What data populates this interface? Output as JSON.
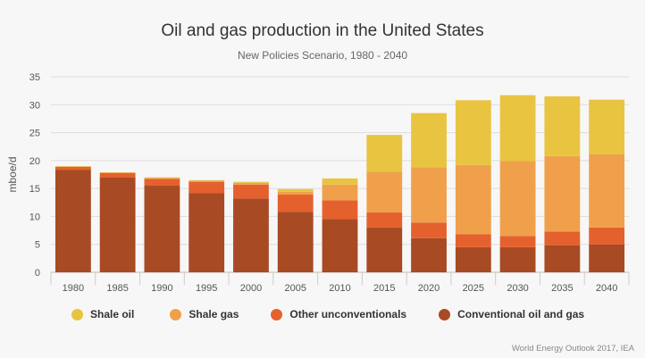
{
  "header": {
    "title": "Oil and gas production in the United States",
    "subtitle": "New Policies Scenario, 1980 - 2040"
  },
  "source": "World Energy Outlook 2017, IEA",
  "colors": {
    "shale_oil": "#e8c441",
    "shale_gas": "#f0a04b",
    "other_unconventionals": "#e4612e",
    "conventional": "#a84a24"
  },
  "chart_data": {
    "type": "bar",
    "stacked": true,
    "title": "Oil and gas production in the United States",
    "subtitle": "New Policies Scenario, 1980 - 2040",
    "xlabel": "",
    "ylabel": "mboe/d",
    "ylim": [
      0,
      35
    ],
    "yticks": [
      0,
      5,
      10,
      15,
      20,
      25,
      30,
      35
    ],
    "grid": true,
    "legend_position": "bottom",
    "categories": [
      "1980",
      "1985",
      "1990",
      "1995",
      "2000",
      "2005",
      "2010",
      "2015",
      "2020",
      "2025",
      "2030",
      "2035",
      "2040"
    ],
    "series": [
      {
        "name": "Conventional oil and gas",
        "key": "conventional",
        "values": [
          18.3,
          17.0,
          15.5,
          14.2,
          13.2,
          10.8,
          9.5,
          8.0,
          6.1,
          4.5,
          4.5,
          4.8,
          5.0
        ]
      },
      {
        "name": "Other unconventionals",
        "key": "other_unconventionals",
        "values": [
          0.6,
          0.8,
          1.2,
          2.0,
          2.5,
          3.1,
          3.4,
          2.7,
          2.8,
          2.3,
          2.0,
          2.5,
          3.0
        ]
      },
      {
        "name": "Shale gas",
        "key": "shale_gas",
        "values": [
          0.0,
          0.0,
          0.2,
          0.2,
          0.3,
          0.5,
          2.8,
          7.3,
          9.9,
          12.4,
          13.4,
          13.5,
          13.1
        ]
      },
      {
        "name": "Shale oil",
        "key": "shale_oil",
        "values": [
          0.1,
          0.1,
          0.1,
          0.1,
          0.2,
          0.5,
          1.1,
          6.6,
          9.7,
          11.6,
          11.8,
          10.7,
          9.8
        ]
      }
    ]
  },
  "legend": [
    {
      "label": "Shale oil",
      "key": "shale_oil"
    },
    {
      "label": "Shale gas",
      "key": "shale_gas"
    },
    {
      "label": "Other unconventionals",
      "key": "other_unconventionals"
    },
    {
      "label": "Conventional oil and gas",
      "key": "conventional"
    }
  ]
}
